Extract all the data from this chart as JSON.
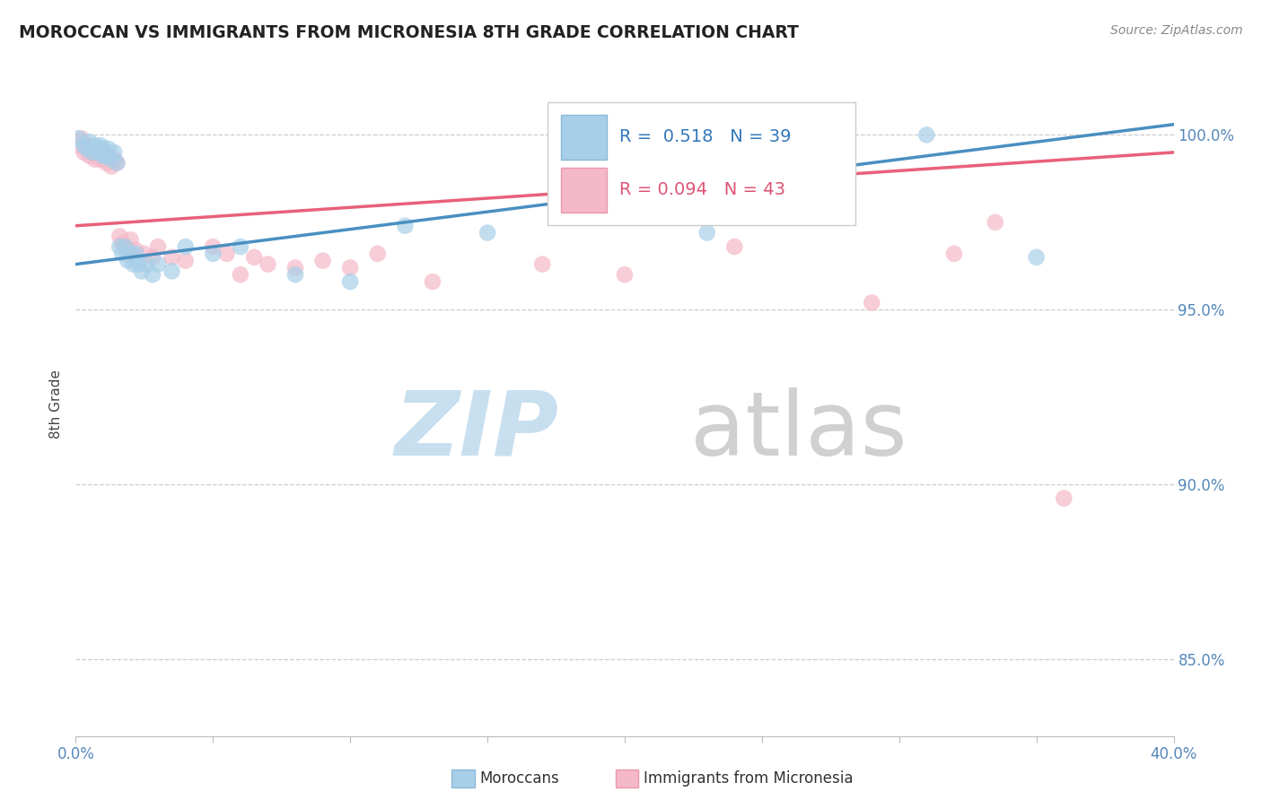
{
  "title": "MOROCCAN VS IMMIGRANTS FROM MICRONESIA 8TH GRADE CORRELATION CHART",
  "source_text": "Source: ZipAtlas.com",
  "ylabel": "8th Grade",
  "ylabel_right_ticks": [
    "100.0%",
    "95.0%",
    "90.0%",
    "85.0%"
  ],
  "ylabel_right_values": [
    1.0,
    0.95,
    0.9,
    0.85
  ],
  "xmin": 0.0,
  "xmax": 0.4,
  "ymin": 0.828,
  "ymax": 1.018,
  "legend_blue_r": "R =  0.518",
  "legend_blue_n": "N = 39",
  "legend_pink_r": "R = 0.094",
  "legend_pink_n": "N = 43",
  "blue_color": "#a8cfe8",
  "pink_color": "#f5b8c8",
  "blue_line_color": "#4a8fc0",
  "pink_line_color": "#e8607a",
  "blue_scatter": [
    [
      0.001,
      0.999
    ],
    [
      0.003,
      0.997
    ],
    [
      0.004,
      0.996
    ],
    [
      0.005,
      0.998
    ],
    [
      0.006,
      0.995
    ],
    [
      0.007,
      0.997
    ],
    [
      0.008,
      0.995
    ],
    [
      0.009,
      0.997
    ],
    [
      0.01,
      0.994
    ],
    [
      0.01,
      0.996
    ],
    [
      0.011,
      0.994
    ],
    [
      0.012,
      0.996
    ],
    [
      0.013,
      0.993
    ],
    [
      0.014,
      0.995
    ],
    [
      0.015,
      0.992
    ],
    [
      0.016,
      0.968
    ],
    [
      0.017,
      0.966
    ],
    [
      0.018,
      0.968
    ],
    [
      0.019,
      0.964
    ],
    [
      0.02,
      0.966
    ],
    [
      0.021,
      0.963
    ],
    [
      0.022,
      0.966
    ],
    [
      0.023,
      0.963
    ],
    [
      0.024,
      0.961
    ],
    [
      0.026,
      0.963
    ],
    [
      0.028,
      0.96
    ],
    [
      0.03,
      0.963
    ],
    [
      0.035,
      0.961
    ],
    [
      0.04,
      0.968
    ],
    [
      0.05,
      0.966
    ],
    [
      0.06,
      0.968
    ],
    [
      0.08,
      0.96
    ],
    [
      0.1,
      0.958
    ],
    [
      0.12,
      0.974
    ],
    [
      0.15,
      0.972
    ],
    [
      0.185,
      0.978
    ],
    [
      0.23,
      0.972
    ],
    [
      0.31,
      1.0
    ],
    [
      0.35,
      0.965
    ]
  ],
  "pink_scatter": [
    [
      0.001,
      0.997
    ],
    [
      0.002,
      0.999
    ],
    [
      0.003,
      0.995
    ],
    [
      0.004,
      0.997
    ],
    [
      0.005,
      0.994
    ],
    [
      0.006,
      0.996
    ],
    [
      0.007,
      0.993
    ],
    [
      0.008,
      0.996
    ],
    [
      0.009,
      0.993
    ],
    [
      0.01,
      0.995
    ],
    [
      0.011,
      0.992
    ],
    [
      0.012,
      0.994
    ],
    [
      0.013,
      0.991
    ],
    [
      0.014,
      0.993
    ],
    [
      0.015,
      0.992
    ],
    [
      0.016,
      0.971
    ],
    [
      0.017,
      0.969
    ],
    [
      0.018,
      0.968
    ],
    [
      0.019,
      0.966
    ],
    [
      0.02,
      0.97
    ],
    [
      0.022,
      0.967
    ],
    [
      0.025,
      0.966
    ],
    [
      0.028,
      0.965
    ],
    [
      0.03,
      0.968
    ],
    [
      0.035,
      0.965
    ],
    [
      0.04,
      0.964
    ],
    [
      0.05,
      0.968
    ],
    [
      0.055,
      0.966
    ],
    [
      0.06,
      0.96
    ],
    [
      0.065,
      0.965
    ],
    [
      0.07,
      0.963
    ],
    [
      0.08,
      0.962
    ],
    [
      0.09,
      0.964
    ],
    [
      0.1,
      0.962
    ],
    [
      0.11,
      0.966
    ],
    [
      0.13,
      0.958
    ],
    [
      0.17,
      0.963
    ],
    [
      0.2,
      0.96
    ],
    [
      0.24,
      0.968
    ],
    [
      0.29,
      0.952
    ],
    [
      0.32,
      0.966
    ],
    [
      0.335,
      0.975
    ],
    [
      0.36,
      0.896
    ]
  ],
  "blue_line_x0": 0.0,
  "blue_line_y0": 0.963,
  "blue_line_x1": 0.4,
  "blue_line_y1": 1.003,
  "pink_line_x0": 0.0,
  "pink_line_y0": 0.974,
  "pink_line_x1": 0.4,
  "pink_line_y1": 0.995
}
